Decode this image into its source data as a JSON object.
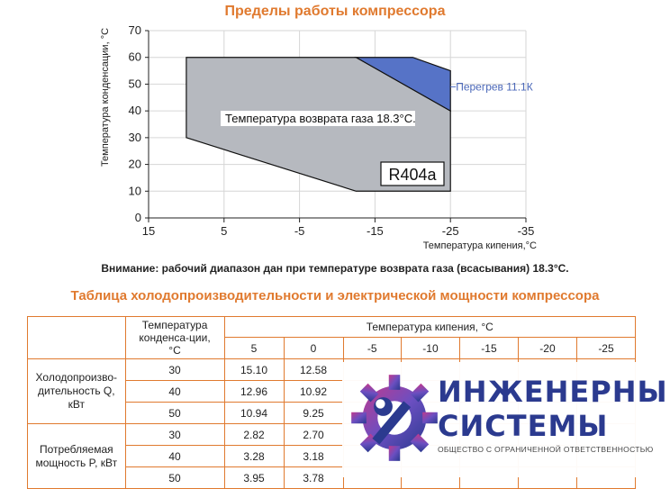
{
  "chart_data": {
    "type": "area",
    "title": "Пределы работы компрессора",
    "xlabel": "Температура кипения,°С",
    "ylabel": "Температура конденсации, °С",
    "x_ticks": [
      "15",
      "5",
      "-5",
      "-15",
      "-25",
      "-35"
    ],
    "y_ticks": [
      "0",
      "10",
      "20",
      "30",
      "40",
      "50",
      "60",
      "70"
    ],
    "xlim": [
      15,
      -35
    ],
    "ylim": [
      0,
      70
    ],
    "grid": true,
    "regions": [
      {
        "name": "gray",
        "label": "Температура возврата газа 18.3°С.",
        "points": [
          [
            10,
            60
          ],
          [
            -12.5,
            60
          ],
          [
            -25,
            40
          ],
          [
            -25,
            10
          ],
          [
            -12.5,
            10
          ],
          [
            10,
            30
          ]
        ]
      },
      {
        "name": "blue",
        "label": "Перегрев 11.1К",
        "points": [
          [
            -12.5,
            60
          ],
          [
            -20,
            60
          ],
          [
            -25,
            55
          ],
          [
            -25,
            40
          ]
        ]
      }
    ],
    "refrigerant": "R404a"
  },
  "colors": {
    "gray_fill": "#b6b9bf",
    "blue_fill": "#5673c7",
    "accent": "#e07a2f",
    "logo": "#2b3a8f"
  },
  "note": "Внимание: рабочий диапазон дан при температуре возврата газа (всасывания) 18.3°С.",
  "table": {
    "title": "Таблица холодопроизводительности и электрической мощности компрессора",
    "cond_header": "Температура конденса-ции, °С",
    "evap_header": "Температура кипения, °С",
    "evap_temps": [
      "5",
      "0",
      "-5",
      "-10",
      "-15",
      "-20",
      "-25"
    ],
    "groups": [
      {
        "label": "Холодопроизво-дительность Q, кВт",
        "rows": [
          {
            "tc": "30",
            "v": [
              "15.10",
              "12.58",
              "",
              "",
              "",
              "",
              ""
            ]
          },
          {
            "tc": "40",
            "v": [
              "12.96",
              "10.92",
              "",
              "",
              "",
              "",
              ""
            ]
          },
          {
            "tc": "50",
            "v": [
              "10.94",
              "9.25",
              "",
              "",
              "",
              "",
              ""
            ]
          }
        ]
      },
      {
        "label": "Потребляемая мощность P, кВт",
        "rows": [
          {
            "tc": "30",
            "v": [
              "2.82",
              "2.70",
              "",
              "",
              "",
              "",
              ""
            ]
          },
          {
            "tc": "40",
            "v": [
              "3.28",
              "3.18",
              "",
              "",
              "",
              "",
              ""
            ]
          },
          {
            "tc": "50",
            "v": [
              "3.95",
              "3.78",
              "",
              "",
              "",
              "",
              ""
            ]
          }
        ]
      }
    ]
  },
  "logo": {
    "line1": "ИНЖЕНЕРНЫЕ",
    "line2": "СИСТЕМЫ",
    "line3": "ОБЩЕСТВО С ОГРАНИЧЕННОЙ ОТВЕТСТВЕННОСТЬЮ",
    "icon": "gear-wrench-icon"
  }
}
